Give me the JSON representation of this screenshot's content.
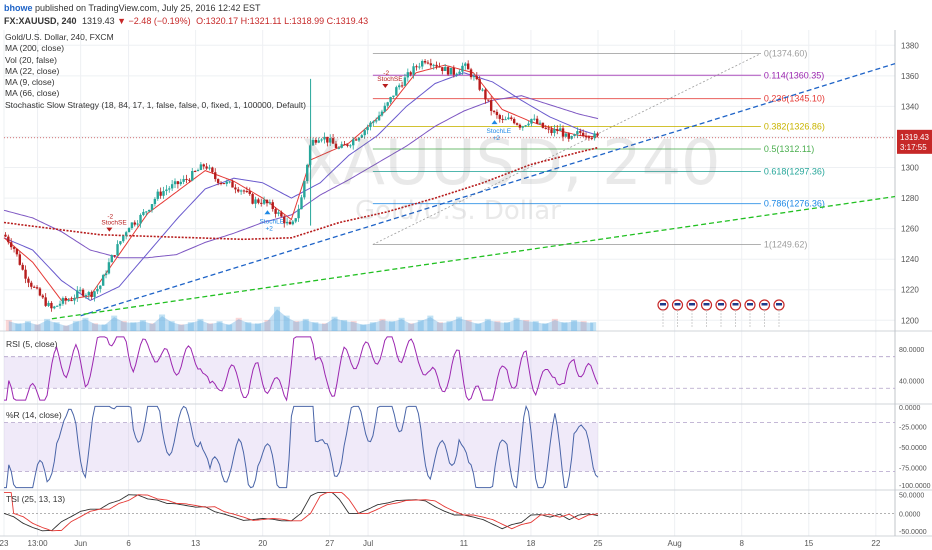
{
  "header": {
    "author": "bhowe",
    "published": "published on TradingView.com, July 25, 2016 12:42 EST",
    "symbol": "FX:XAUUSD, 240",
    "last": "1319.43",
    "change": "−2.48 (−0.19%)",
    "open": "O:1320.17",
    "high": "H:1321.11",
    "low": "L:1318.99",
    "close": "C:1319.43"
  },
  "legend": [
    "Gold/U.S. Dollar, 240, FXCM",
    "MA (200, close)",
    "Vol (20, false)",
    "MA (22, close)",
    "MA (9, close)",
    "MA (66, close)",
    "Stochastic Slow Strategy (18, 84, 17, 1, false, false, 0, fixed, 1, 100000, Default)"
  ],
  "watermark": {
    "symbol": "XAUUSD, 240",
    "name": "Gold/U.S. Dollar"
  },
  "price_badge": {
    "price": "1319.43",
    "countdown": "3:17:55"
  },
  "signals": {
    "sell_label": "StochSE",
    "buy_label": "StochLE",
    "qty": "-2",
    "qty_buy": "+2"
  },
  "colors": {
    "up": "#26a69a",
    "down": "#b71c1c",
    "ma200": "#b71c1c",
    "ma22": "#6a5acd",
    "ma9": "#e53935",
    "ma66": "#7e57c2",
    "trend_blue": "#1e63c7",
    "trend_green": "#22c022",
    "rsi": "#9c27b0",
    "wr": "#4a65a8"
  },
  "chart_data": {
    "type": "candlestick",
    "title": "Gold/U.S. Dollar, 240, FXCM",
    "price_ylim": [
      1193,
      1390
    ],
    "price_ticks": [
      1200,
      1220,
      1240,
      1260,
      1280,
      1300,
      1320,
      1340,
      1360,
      1380
    ],
    "x_tick_labels": [
      "23",
      "13:00",
      "Jun",
      "6",
      "13",
      "20",
      "27",
      "Jul",
      "11",
      "18",
      "25",
      "Aug",
      "8",
      "15",
      "22"
    ],
    "x_tick_days": [
      0,
      3.5,
      8,
      13,
      20,
      27,
      34,
      38,
      48,
      55,
      62,
      70,
      77,
      84,
      91
    ],
    "x_day_range": [
      0,
      93
    ],
    "price_path": [
      [
        0,
        1256
      ],
      [
        1,
        1248
      ],
      [
        2,
        1232
      ],
      [
        3,
        1222
      ],
      [
        4,
        1214
      ],
      [
        5,
        1207
      ],
      [
        6,
        1212
      ],
      [
        7,
        1214
      ],
      [
        8,
        1219
      ],
      [
        9,
        1217
      ],
      [
        10,
        1222
      ],
      [
        11,
        1238
      ],
      [
        12,
        1250
      ],
      [
        13,
        1262
      ],
      [
        14,
        1266
      ],
      [
        15,
        1273
      ],
      [
        16,
        1282
      ],
      [
        17,
        1286
      ],
      [
        18,
        1289
      ],
      [
        19,
        1292
      ],
      [
        20,
        1297
      ],
      [
        21,
        1302
      ],
      [
        22,
        1293
      ],
      [
        23,
        1290
      ],
      [
        24,
        1288
      ],
      [
        25,
        1285
      ],
      [
        26,
        1278
      ],
      [
        27,
        1278
      ],
      [
        28,
        1274
      ],
      [
        29,
        1267
      ],
      [
        30,
        1260
      ],
      [
        31,
        1278
      ],
      [
        32,
        1316
      ],
      [
        33,
        1321
      ],
      [
        34,
        1317
      ],
      [
        35,
        1312
      ],
      [
        36,
        1316
      ],
      [
        37,
        1321
      ],
      [
        38,
        1327
      ],
      [
        39,
        1333
      ],
      [
        40,
        1341
      ],
      [
        41,
        1352
      ],
      [
        42,
        1359
      ],
      [
        43,
        1366
      ],
      [
        44,
        1371
      ],
      [
        45,
        1368
      ],
      [
        46,
        1364
      ],
      [
        47,
        1362
      ],
      [
        48,
        1367
      ],
      [
        49,
        1359
      ],
      [
        50,
        1349
      ],
      [
        51,
        1336
      ],
      [
        52,
        1330
      ],
      [
        53,
        1332
      ],
      [
        54,
        1327
      ],
      [
        55,
        1332
      ],
      [
        56,
        1327
      ],
      [
        57,
        1323
      ],
      [
        58,
        1325
      ],
      [
        59,
        1317
      ],
      [
        60,
        1323
      ],
      [
        61,
        1322
      ],
      [
        62,
        1319.43
      ]
    ],
    "ma200": [
      [
        0,
        1264
      ],
      [
        5,
        1260
      ],
      [
        10,
        1256
      ],
      [
        15,
        1255
      ],
      [
        20,
        1254
      ],
      [
        25,
        1253
      ],
      [
        30,
        1254
      ],
      [
        35,
        1264
      ],
      [
        40,
        1271
      ],
      [
        45,
        1280
      ],
      [
        50,
        1290
      ],
      [
        55,
        1302
      ],
      [
        60,
        1310
      ],
      [
        62,
        1313
      ]
    ],
    "ma66": [
      [
        0,
        1272
      ],
      [
        3,
        1267
      ],
      [
        6,
        1258
      ],
      [
        9,
        1246
      ],
      [
        12,
        1241
      ],
      [
        15,
        1241
      ],
      [
        18,
        1243
      ],
      [
        21,
        1251
      ],
      [
        24,
        1257
      ],
      [
        27,
        1264
      ],
      [
        30,
        1269
      ],
      [
        33,
        1282
      ],
      [
        36,
        1292
      ],
      [
        39,
        1303
      ],
      [
        42,
        1314
      ],
      [
        45,
        1327
      ],
      [
        48,
        1337
      ],
      [
        51,
        1344
      ],
      [
        54,
        1347
      ],
      [
        57,
        1341
      ],
      [
        60,
        1335
      ],
      [
        62,
        1332
      ]
    ],
    "ma22": [
      [
        0,
        1254
      ],
      [
        3,
        1246
      ],
      [
        6,
        1226
      ],
      [
        9,
        1213
      ],
      [
        12,
        1222
      ],
      [
        15,
        1244
      ],
      [
        18,
        1266
      ],
      [
        21,
        1286
      ],
      [
        24,
        1293
      ],
      [
        27,
        1290
      ],
      [
        30,
        1280
      ],
      [
        33,
        1290
      ],
      [
        36,
        1308
      ],
      [
        39,
        1321
      ],
      [
        42,
        1340
      ],
      [
        45,
        1355
      ],
      [
        48,
        1362
      ],
      [
        51,
        1356
      ],
      [
        54,
        1344
      ],
      [
        57,
        1333
      ],
      [
        60,
        1325
      ],
      [
        62,
        1321
      ]
    ],
    "ma9": [
      [
        0,
        1254
      ],
      [
        3,
        1238
      ],
      [
        6,
        1213
      ],
      [
        9,
        1216
      ],
      [
        12,
        1243
      ],
      [
        15,
        1270
      ],
      [
        18,
        1284
      ],
      [
        21,
        1298
      ],
      [
        24,
        1291
      ],
      [
        27,
        1280
      ],
      [
        30,
        1266
      ],
      [
        32,
        1305
      ],
      [
        36,
        1316
      ],
      [
        40,
        1338
      ],
      [
        43,
        1362
      ],
      [
        46,
        1367
      ],
      [
        49,
        1362
      ],
      [
        52,
        1338
      ],
      [
        55,
        1330
      ],
      [
        58,
        1324
      ],
      [
        60,
        1321
      ],
      [
        62,
        1320
      ]
    ],
    "fib_levels": [
      {
        "ratio": "0",
        "price": 1374.6,
        "label": "0(1374.60)",
        "color": "#9e9e9e"
      },
      {
        "ratio": "0.114",
        "price": 1360.35,
        "label": "0.114(1360.35)",
        "color": "#9c27b0"
      },
      {
        "ratio": "0.236",
        "price": 1345.1,
        "label": "0.236(1345.10)",
        "color": "#e53935"
      },
      {
        "ratio": "0.382",
        "price": 1326.86,
        "label": "0.382(1326.86)",
        "color": "#c8b400"
      },
      {
        "ratio": "0.5",
        "price": 1312.11,
        "label": "0.5(1312.11)",
        "color": "#4caf50"
      },
      {
        "ratio": "0.618",
        "price": 1297.36,
        "label": "0.618(1297.36)",
        "color": "#26a69a"
      },
      {
        "ratio": "0.786",
        "price": 1276.36,
        "label": "0.786(1276.36)",
        "color": "#1e88e5"
      },
      {
        "ratio": "1",
        "price": 1249.62,
        "label": "1(1249.62)",
        "color": "#9e9e9e"
      }
    ],
    "fib_day_range": [
      38.5,
      79
    ],
    "trendlines": [
      {
        "name": "blue",
        "from": [
          8,
          1203
        ],
        "to": [
          93,
          1368
        ]
      },
      {
        "name": "green",
        "from": [
          5,
          1201
        ],
        "to": [
          93,
          1281
        ]
      }
    ],
    "volume_profile": [
      10,
      7,
      9,
      6,
      11,
      8,
      5,
      9,
      12,
      7,
      6,
      14,
      9,
      8,
      10,
      7,
      15,
      9,
      6,
      8,
      11,
      7,
      9,
      6,
      12,
      8,
      7,
      10,
      22,
      14,
      9,
      11,
      8,
      7,
      13,
      10,
      9,
      6,
      8,
      11,
      9,
      12,
      7,
      10,
      14,
      8,
      9,
      13,
      10,
      7,
      11,
      9,
      8,
      12,
      10,
      9,
      7,
      11,
      8,
      10,
      9,
      8
    ],
    "rsi": {
      "label": "RSI (5, close)",
      "ticks": [
        "80.0000",
        "40.0000"
      ],
      "band": [
        30,
        70
      ],
      "ylim": [
        10,
        100
      ]
    },
    "williams_r": {
      "label": "%R (14, close)",
      "ticks": [
        "0.0000",
        "-25.0000",
        "-50.0000",
        "-75.0000",
        "-100.0000"
      ],
      "band": [
        -80,
        -20
      ],
      "ylim": [
        -103,
        3
      ]
    },
    "tsi": {
      "label": "TSI (25, 13, 13)",
      "ticks": [
        "50.0000",
        "0.0000",
        "-50.0000"
      ],
      "ylim": [
        -60,
        62
      ]
    }
  }
}
